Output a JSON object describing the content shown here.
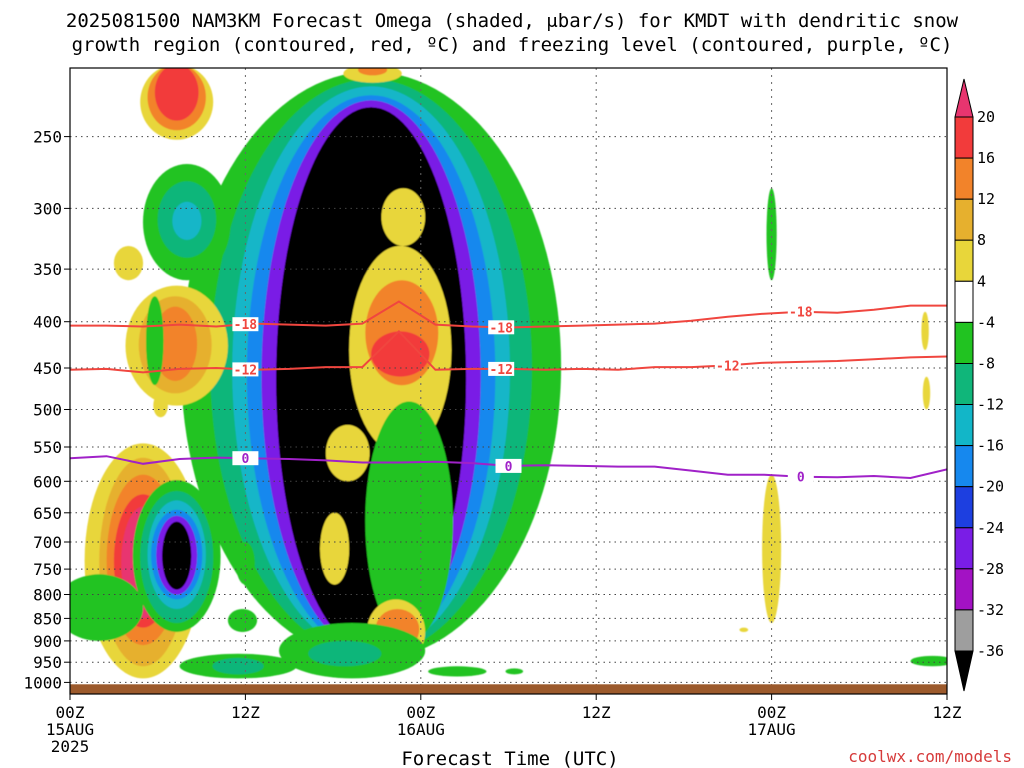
{
  "chart_data": {
    "type": "heatmap",
    "title_line1": "2025081500 NAM3KM Forecast Omega (shaded, μbar/s) for KMDT with dendritic snow",
    "title_line2": "growth region (contoured, red, ºC) and freezing level (contoured, purple, ºC)",
    "xlabel": "Forecast Time (UTC)",
    "ylabel": "",
    "credit": "coolwx.com/models",
    "y_axis": {
      "scale": "pressure (log)",
      "range": [
        1030,
        210
      ],
      "ticks": [
        250,
        300,
        350,
        400,
        450,
        500,
        550,
        600,
        650,
        700,
        750,
        800,
        850,
        900,
        950,
        1000
      ]
    },
    "x_axis": {
      "range_hours": [
        0,
        60
      ],
      "ticks": [
        {
          "hour": 0,
          "label": "00Z",
          "sub": "15AUG",
          "sub2": "2025"
        },
        {
          "hour": 12,
          "label": "12Z",
          "sub": "",
          "sub2": ""
        },
        {
          "hour": 24,
          "label": "00Z",
          "sub": "16AUG",
          "sub2": ""
        },
        {
          "hour": 36,
          "label": "12Z",
          "sub": "",
          "sub2": ""
        },
        {
          "hour": 48,
          "label": "00Z",
          "sub": "17AUG",
          "sub2": ""
        },
        {
          "hour": 60,
          "label": "12Z",
          "sub": "",
          "sub2": ""
        }
      ]
    },
    "grid": true,
    "colorbar": {
      "labels": [
        "20",
        "16",
        "12",
        "8",
        "4",
        "-4",
        "-8",
        "-12",
        "-16",
        "-20",
        "-24",
        "-28",
        "-32",
        "-36"
      ],
      "colors": [
        "#e8356f",
        "#f23b3b",
        "#f2832a",
        "#e6b02e",
        "#e8d63a",
        "#ffffff",
        "#21c321",
        "#10b67a",
        "#12b6c8",
        "#1688ee",
        "#1d3fe0",
        "#7a1de6",
        "#a312c4",
        "#9e9e9e",
        "#000000"
      ]
    },
    "contours": [
      {
        "name": "-18",
        "color": "#f0463f",
        "level_hpa": [
          404,
          404,
          405,
          403,
          405,
          402,
          403,
          404,
          402,
          380,
          403,
          405,
          406,
          405,
          404,
          403,
          402,
          399,
          395,
          392,
          390,
          391,
          388,
          384,
          384
        ],
        "label_hours": [
          12,
          29.5,
          50
        ]
      },
      {
        "name": "-12",
        "color": "#f0463f",
        "level_hpa": [
          452,
          451,
          455,
          451,
          450,
          452,
          451,
          449,
          449,
          410,
          452,
          451,
          451,
          452,
          451,
          452,
          449,
          449,
          447,
          444,
          443,
          442,
          440,
          438,
          437
        ],
        "label_hours": [
          12,
          29.5,
          45
        ]
      },
      {
        "name": "0",
        "color": "#a021c8",
        "level_hpa": [
          566,
          563,
          574,
          567,
          565,
          566,
          567,
          569,
          572,
          572,
          571,
          573,
          577,
          576,
          577,
          578,
          578,
          584,
          590,
          590,
          593,
          594,
          592,
          595,
          582
        ],
        "label_hours": [
          12,
          30,
          50
        ]
      }
    ],
    "terrain": {
      "color": "#9c5a2c",
      "surface_hpa": 1005
    },
    "omega_features": [
      {
        "hour": 20.6,
        "p_top": 220,
        "p_bot": 925,
        "min": -36,
        "kind": "strong_ascent"
      },
      {
        "hour": 7.3,
        "p_top": 650,
        "p_bot": 790,
        "min": -36,
        "kind": "ascent_core"
      },
      {
        "hour": 5.0,
        "p_top": 560,
        "p_bot": 985,
        "max": 20,
        "kind": "descent"
      },
      {
        "hour": 7.3,
        "p_top": 210,
        "p_bot": 250,
        "max": 20,
        "kind": "descent"
      },
      {
        "hour": 7.2,
        "p_top": 370,
        "p_bot": 480,
        "max": 12,
        "kind": "descent"
      },
      {
        "hour": 7.7,
        "p_top": 275,
        "p_bot": 345,
        "min": -16,
        "kind": "ascent"
      },
      {
        "hour": 12.0,
        "p_top": 935,
        "p_bot": 990,
        "min": -12,
        "kind": "ascent"
      },
      {
        "hour": 48.0,
        "p_top": 600,
        "p_bot": 850,
        "max": 4,
        "kind": "descent"
      }
    ]
  }
}
